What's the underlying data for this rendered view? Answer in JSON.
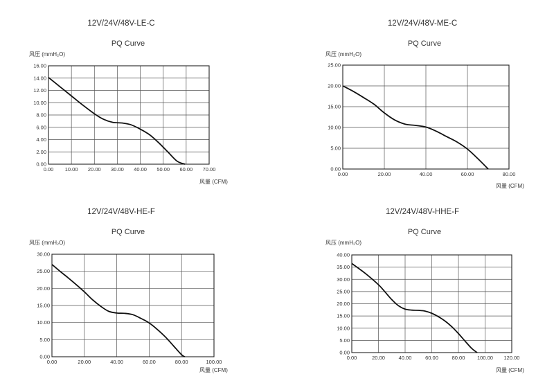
{
  "charts": [
    {
      "model": "12V/24V/48V-LE-C",
      "curve_title": "PQ Curve",
      "ylabel": "风压 (mmH₂O)",
      "xlabel": "风量 (CFM)"
    },
    {
      "model": "12V/24V/48V-ME-C",
      "curve_title": "PQ Curve",
      "ylabel": "风压 (mmH₂O)",
      "xlabel": "风量 (CFM)"
    },
    {
      "model": "12V/24V/48V-HE-F",
      "curve_title": "PQ Curve",
      "ylabel": "风压 (mmH₂O)",
      "xlabel": "风量 (CFM)"
    },
    {
      "model": "12V/24V/48V-HHE-F",
      "curve_title": "PQ Curve",
      "ylabel": "风压 (mmH₂O)",
      "xlabel": "风量 (CFM)"
    }
  ],
  "chart_data": [
    {
      "type": "line",
      "title": "12V/24V/48V-LE-C",
      "subtitle": "PQ Curve",
      "xlabel": "风量 (CFM)",
      "ylabel": "风压 (mmH₂O)",
      "xlim": [
        0,
        70
      ],
      "ylim": [
        0,
        16
      ],
      "xticks": [
        "0.00",
        "10.00",
        "20.00",
        "30.00",
        "40.00",
        "50.00",
        "60.00",
        "70.00"
      ],
      "yticks": [
        "0.00",
        "2.00",
        "4.00",
        "6.00",
        "8.00",
        "10.00",
        "12.00",
        "14.00",
        "16.00"
      ],
      "grid": true,
      "series": [
        {
          "x": [
            0,
            5,
            10,
            15,
            20,
            24,
            28,
            32,
            36,
            40,
            44,
            48,
            52,
            56,
            59.5
          ],
          "y": [
            14.1,
            12.6,
            11.1,
            9.6,
            8.2,
            7.3,
            6.8,
            6.7,
            6.4,
            5.7,
            4.8,
            3.5,
            2.0,
            0.5,
            0
          ]
        }
      ]
    },
    {
      "type": "line",
      "title": "12V/24V/48V-ME-C",
      "subtitle": "PQ Curve",
      "xlabel": "风量 (CFM)",
      "ylabel": "风压 (mmH₂O)",
      "xlim": [
        0,
        80
      ],
      "ylim": [
        0,
        25
      ],
      "xticks": [
        "0.00",
        "20.00",
        "40.00",
        "60.00",
        "80.00"
      ],
      "yticks": [
        "0.00",
        "5.00",
        "10.00",
        "15.00",
        "20.00",
        "25.00"
      ],
      "grid": true,
      "series": [
        {
          "x": [
            0,
            5,
            10,
            15,
            20,
            25,
            30,
            35,
            40,
            45,
            50,
            55,
            60,
            65,
            70
          ],
          "y": [
            20,
            18.7,
            17.2,
            15.6,
            13.5,
            11.8,
            10.8,
            10.5,
            10.1,
            9.1,
            7.8,
            6.5,
            4.8,
            2.5,
            0
          ]
        }
      ]
    },
    {
      "type": "line",
      "title": "12V/24V/48V-HE-F",
      "subtitle": "PQ Curve",
      "xlabel": "风量 (CFM)",
      "ylabel": "风压 (mmH₂O)",
      "xlim": [
        0,
        100
      ],
      "ylim": [
        0,
        30
      ],
      "xticks": [
        "0.00",
        "20.00",
        "40.00",
        "60.00",
        "80.00",
        "100.00"
      ],
      "yticks": [
        "0.00",
        "5.00",
        "10.00",
        "15.00",
        "20.00",
        "25.00",
        "30.00"
      ],
      "grid": true,
      "series": [
        {
          "x": [
            0,
            5,
            10,
            15,
            20,
            25,
            30,
            35,
            40,
            45,
            50,
            55,
            60,
            65,
            70,
            75,
            80,
            82
          ],
          "y": [
            27,
            25,
            23.1,
            21.1,
            19,
            16.7,
            14.8,
            13.3,
            12.8,
            12.7,
            12.3,
            11.2,
            9.9,
            8.0,
            5.8,
            3.2,
            0.6,
            0
          ]
        }
      ]
    },
    {
      "type": "line",
      "title": "12V/24V/48V-HHE-F",
      "subtitle": "PQ Curve",
      "xlabel": "风量 (CFM)",
      "ylabel": "风压 (mmH₂O)",
      "xlim": [
        0,
        120
      ],
      "ylim": [
        0,
        40
      ],
      "xticks": [
        "0.00",
        "20.00",
        "40.00",
        "60.00",
        "80.00",
        "100.00",
        "120.00"
      ],
      "yticks": [
        "0.00",
        "5.00",
        "10.00",
        "15.00",
        "20.00",
        "25.00",
        "30.00",
        "35.00",
        "40.00"
      ],
      "grid": true,
      "series": [
        {
          "x": [
            0,
            10,
            20,
            25,
            30,
            35,
            40,
            45,
            50,
            55,
            60,
            65,
            70,
            75,
            80,
            85,
            90,
            94
          ],
          "y": [
            36.5,
            32.5,
            27.8,
            24.8,
            21.7,
            19.2,
            17.8,
            17.4,
            17.3,
            17.0,
            16.1,
            14.7,
            12.9,
            10.6,
            7.8,
            4.7,
            1.7,
            0
          ]
        }
      ]
    }
  ]
}
